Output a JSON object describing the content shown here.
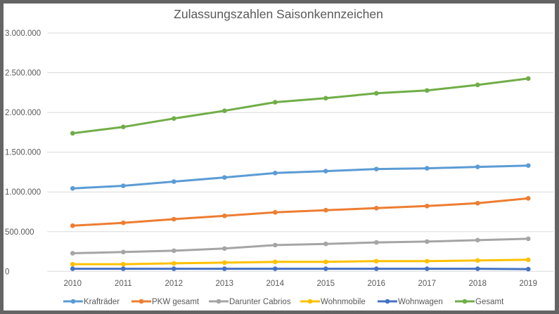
{
  "chart_data": {
    "type": "line",
    "title": "Zulassungszahlen Saisonkennzeichen",
    "xlabel": "",
    "ylabel": "",
    "categories": [
      "2010",
      "2011",
      "2012",
      "2013",
      "2014",
      "2015",
      "2016",
      "2017",
      "2018",
      "2019"
    ],
    "ylim": [
      0,
      3000000
    ],
    "yticks": [
      0,
      500000,
      1000000,
      1500000,
      2000000,
      2500000,
      3000000
    ],
    "ytick_labels": [
      "0",
      "500.000",
      "1.000.000",
      "1.500.000",
      "2.000.000",
      "2.500.000",
      "3.000.000"
    ],
    "grid": true,
    "legend_position": "bottom",
    "series": [
      {
        "name": "Krafträder",
        "color": "#5B9BD5",
        "values": [
          1044000,
          1077000,
          1130000,
          1182000,
          1238000,
          1262000,
          1288000,
          1297000,
          1315000,
          1332000
        ]
      },
      {
        "name": "PKW gesamt",
        "color": "#ED7D31",
        "values": [
          575000,
          611000,
          657000,
          699000,
          743000,
          770000,
          796000,
          822000,
          858000,
          919000
        ]
      },
      {
        "name": "Darunter Cabrios",
        "color": "#A5A5A5",
        "values": [
          228000,
          243000,
          260000,
          287000,
          331000,
          346000,
          364000,
          375000,
          393000,
          410000
        ]
      },
      {
        "name": "Wohnmobile",
        "color": "#FFC000",
        "values": [
          90000,
          90000,
          101000,
          110000,
          119000,
          119000,
          128000,
          128000,
          137000,
          146000
        ]
      },
      {
        "name": "Wohnwagen",
        "color": "#4472C4",
        "values": [
          33000,
          33000,
          33000,
          33000,
          33000,
          33000,
          33000,
          33000,
          33000,
          28000
        ]
      },
      {
        "name": "Gesamt",
        "color": "#70AD47",
        "values": [
          1738000,
          1818000,
          1924000,
          2021000,
          2129000,
          2180000,
          2241000,
          2277000,
          2347000,
          2427000
        ]
      }
    ]
  }
}
